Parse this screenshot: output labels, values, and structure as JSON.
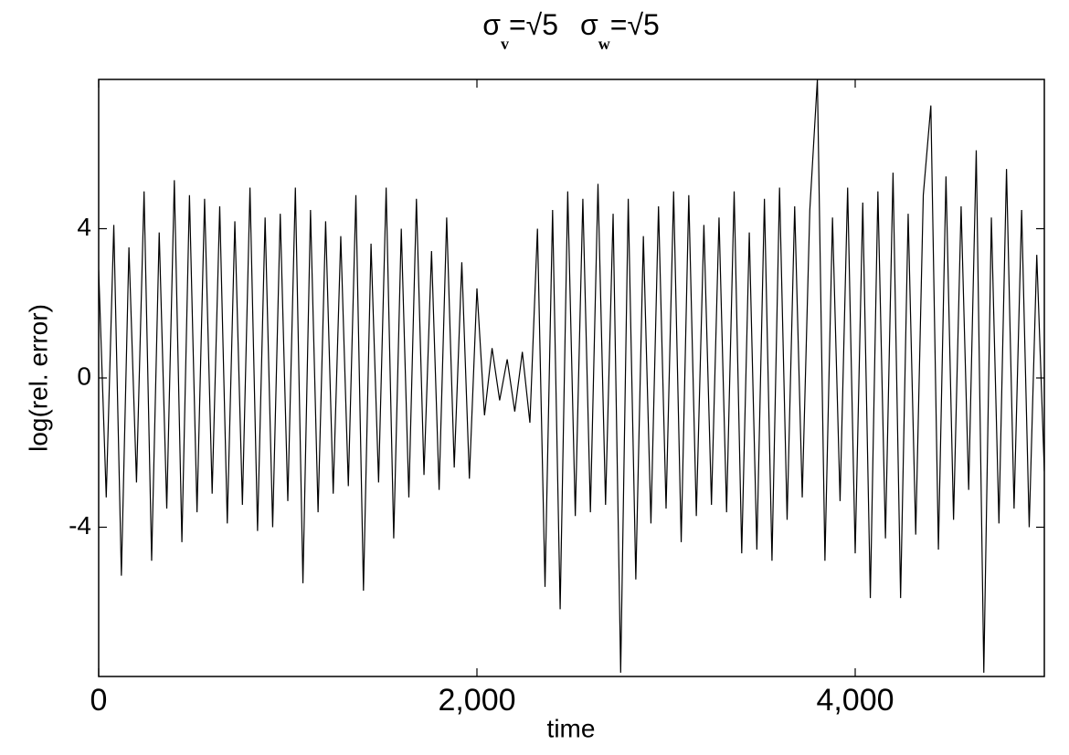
{
  "chart_data": {
    "type": "line",
    "title": [
      "σ",
      "v",
      "=√5",
      "σ",
      "w",
      "=√5"
    ],
    "xlabel": "time",
    "ylabel": "log(rel. error)",
    "x": [
      0,
      40,
      80,
      120,
      160,
      200,
      240,
      280,
      320,
      360,
      400,
      440,
      480,
      520,
      560,
      600,
      640,
      680,
      720,
      760,
      800,
      840,
      880,
      920,
      960,
      1000,
      1040,
      1080,
      1120,
      1160,
      1200,
      1240,
      1280,
      1320,
      1360,
      1400,
      1440,
      1480,
      1520,
      1560,
      1600,
      1640,
      1680,
      1720,
      1760,
      1800,
      1840,
      1880,
      1920,
      1960,
      2000,
      2040,
      2080,
      2120,
      2160,
      2200,
      2240,
      2280,
      2320,
      2360,
      2400,
      2440,
      2480,
      2520,
      2560,
      2600,
      2640,
      2680,
      2720,
      2760,
      2800,
      2840,
      2880,
      2920,
      2960,
      3000,
      3040,
      3080,
      3120,
      3160,
      3200,
      3240,
      3280,
      3320,
      3360,
      3400,
      3440,
      3480,
      3520,
      3560,
      3600,
      3640,
      3680,
      3720,
      3760,
      3800,
      3840,
      3880,
      3920,
      3960,
      4000,
      4040,
      4080,
      4120,
      4160,
      4200,
      4240,
      4280,
      4320,
      4360,
      4400,
      4440,
      4480,
      4520,
      4560,
      4600,
      4640,
      4680,
      4720,
      4760,
      4800,
      4840,
      4880,
      4920,
      4960,
      5000
    ],
    "series": [
      {
        "color": "#000000",
        "values": [
          2.9,
          -3.2,
          4.1,
          -5.3,
          3.5,
          -2.8,
          5.0,
          -4.9,
          3.9,
          -3.5,
          5.3,
          -4.4,
          4.9,
          -3.6,
          4.8,
          -3.1,
          4.6,
          -3.9,
          4.2,
          -3.4,
          5.1,
          -4.1,
          4.3,
          -4.0,
          4.4,
          -3.3,
          5.1,
          -5.5,
          4.5,
          -3.6,
          4.2,
          -3.1,
          3.8,
          -2.9,
          4.9,
          -5.7,
          3.6,
          -2.8,
          5.1,
          -4.3,
          4.0,
          -3.2,
          4.8,
          -2.6,
          3.4,
          -3.0,
          4.3,
          -2.4,
          3.1,
          -2.7,
          2.4,
          -1.0,
          0.8,
          -0.6,
          0.5,
          -0.9,
          0.7,
          -1.2,
          4.0,
          -5.6,
          4.5,
          -6.2,
          5.0,
          -3.7,
          4.8,
          -3.6,
          5.2,
          -3.4,
          4.4,
          -7.9,
          4.8,
          -5.4,
          3.8,
          -3.9,
          4.6,
          -3.5,
          5.0,
          -4.4,
          4.9,
          -3.7,
          4.1,
          -3.4,
          4.3,
          -3.6,
          5.0,
          -4.7,
          3.9,
          -4.6,
          4.8,
          -4.9,
          5.1,
          -3.8,
          4.6,
          -3.2,
          4.5,
          8.0,
          -4.9,
          4.3,
          -3.3,
          5.1,
          -4.7,
          4.7,
          -5.9,
          5.0,
          -4.3,
          5.5,
          -5.9,
          4.4,
          -4.2,
          4.9,
          7.3,
          -4.6,
          5.4,
          -3.8,
          4.6,
          -3.0,
          6.1,
          -7.9,
          4.3,
          -3.9,
          5.6,
          -3.5,
          4.5,
          -4.0,
          3.3,
          -2.5
        ]
      }
    ],
    "xlim": [
      0,
      5000
    ],
    "ylim": [
      -8,
      8
    ],
    "xticks": [
      0,
      {
        "value": 2000,
        "label": "2,000"
      },
      {
        "value": 4000,
        "label": "4,000"
      }
    ],
    "yticks": [
      -4,
      0,
      4
    ]
  }
}
